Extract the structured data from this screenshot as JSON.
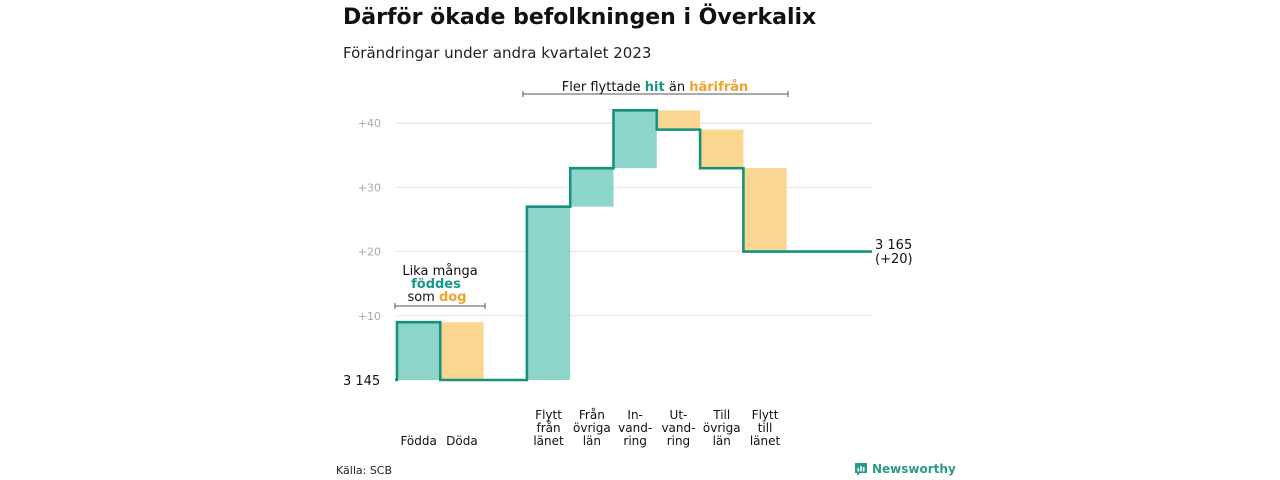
{
  "header": {
    "title": "Därför ökade befolkningen i Överkalix",
    "subtitle": "Förändringar under andra kvartalet 2023"
  },
  "footer": {
    "source": "Källa: SCB",
    "brand": "Newsworthy"
  },
  "colors": {
    "increase": "#8dd5cb",
    "decrease": "#fad690",
    "line": "#16917e",
    "teal_text": "#18968a",
    "orange_text": "#f2a22e",
    "grid": "#e2e2e2",
    "tick": "#a8a8a8"
  },
  "chart_data": {
    "type": "waterfall",
    "title": "Därför ökade befolkningen i Överkalix",
    "subtitle": "Förändringar under andra kvartalet 2023",
    "base_value": "3 145",
    "end_value": "3 165",
    "end_change": "(+20)",
    "y_ticks": [
      "+10",
      "+20",
      "+30",
      "+40"
    ],
    "ylim": [
      0,
      45
    ],
    "categories": [
      {
        "label": "Födda",
        "change": 9
      },
      {
        "label": "Döda",
        "change": -9
      },
      {
        "label": "",
        "change": 0
      },
      {
        "label": "Flytt från länet",
        "change": 27
      },
      {
        "label": "Från övriga län",
        "change": 6
      },
      {
        "label": "In- vand- ring",
        "change": 9
      },
      {
        "label": "Ut- vand- ring",
        "change": -3
      },
      {
        "label": "Till övriga län",
        "change": -6
      },
      {
        "label": "Flytt till länet",
        "change": -13
      }
    ],
    "annotations": {
      "equal": {
        "line1": "Lika många",
        "born": "föddes",
        "line3_prefix": "som",
        "died": "dog"
      },
      "moves": {
        "prefix": "Fler flyttade",
        "here": "hit",
        "middle": "än",
        "away": "härifrån"
      }
    }
  }
}
